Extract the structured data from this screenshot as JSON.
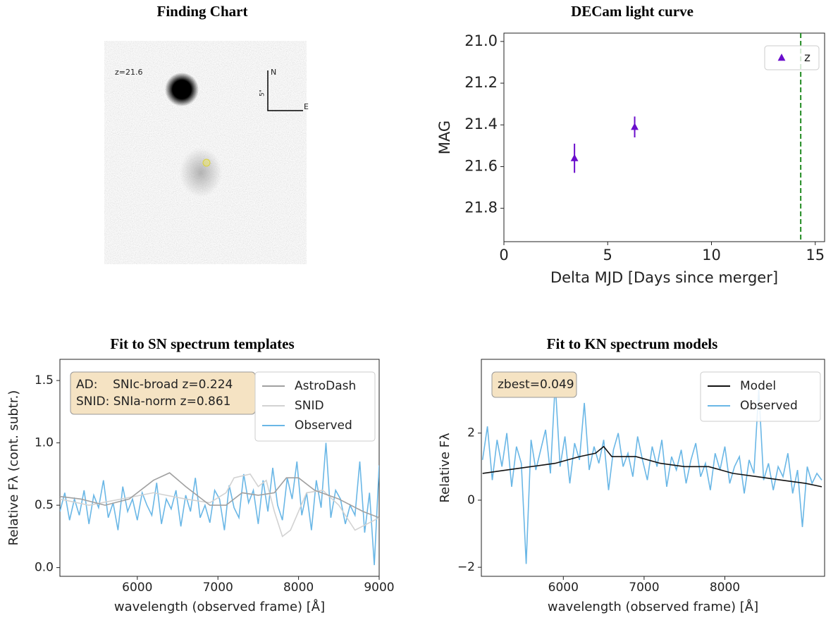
{
  "chart_data": [
    {
      "type": "image",
      "title": "Finding Chart",
      "annotations": [
        "z=21.6",
        "N",
        "E",
        "5\""
      ]
    },
    {
      "type": "scatter",
      "title": "DECam light curve",
      "xlabel": "Delta MJD [Days since merger]",
      "ylabel": "MAG",
      "xlim": [
        0,
        15.45
      ],
      "ylim": [
        20.96,
        21.96
      ],
      "y_inverted": true,
      "xticks": [
        0,
        5,
        10,
        15
      ],
      "yticks": [
        {
          "value": 21,
          "label": "21.0"
        },
        21.2,
        21.4,
        21.6,
        21.8
      ],
      "series": [
        {
          "name": "z",
          "color": "#6a0dcc",
          "x": [
            3.4,
            6.3
          ],
          "values": [
            21.56,
            21.41
          ],
          "errors": [
            0.07,
            0.05
          ]
        }
      ],
      "vlines": [
        14.3
      ],
      "vline_color": "#228b22",
      "legend": "upper right",
      "grid": false
    },
    {
      "type": "line",
      "title": "Fit to SN spectrum templates",
      "xlabel": "wavelength (observed frame) [Å]",
      "ylabel": "Relative Fλ (cont. subtr.)",
      "xlim": [
        5040,
        9000
      ],
      "ylim": [
        -0.07,
        1.67
      ],
      "xticks": [
        6000,
        7000,
        8000,
        9000
      ],
      "yticks": [
        {
          "value": 0,
          "label": "0.0"
        },
        0.5,
        {
          "value": 1,
          "label": "1.0"
        },
        1.5
      ],
      "annotation": [
        "AD:    SNIc-broad z=0.224",
        "SNID: SNIa-norm z=0.861"
      ],
      "legend": "upper right",
      "grid": false,
      "series": [
        {
          "name": "AstroDash",
          "color": "#a0a0a0",
          "x": [
            5040,
            5300,
            5600,
            5900,
            6200,
            6400,
            6600,
            6900,
            7100,
            7300,
            7500,
            7700,
            7850,
            8000,
            8200,
            8500,
            8800,
            9000
          ],
          "values": [
            0.57,
            0.55,
            0.5,
            0.55,
            0.7,
            0.76,
            0.65,
            0.5,
            0.5,
            0.6,
            0.58,
            0.6,
            0.72,
            0.72,
            0.62,
            0.55,
            0.45,
            0.4
          ]
        },
        {
          "name": "SNID",
          "color": "#d2d2d2",
          "x": [
            5040,
            5400,
            5800,
            6200,
            6600,
            6900,
            7100,
            7200,
            7400,
            7500,
            7600,
            7700,
            7800,
            7900,
            8100,
            8300,
            8500,
            8700,
            9000
          ],
          "values": [
            0.55,
            0.5,
            0.55,
            0.6,
            0.55,
            0.52,
            0.6,
            0.72,
            0.75,
            0.65,
            0.7,
            0.45,
            0.25,
            0.3,
            0.6,
            0.62,
            0.5,
            0.3,
            0.4
          ]
        },
        {
          "name": "Observed",
          "color": "#6ab7e6",
          "x": [
            5040,
            5100,
            5160,
            5220,
            5280,
            5340,
            5400,
            5460,
            5520,
            5580,
            5640,
            5700,
            5760,
            5820,
            5880,
            5940,
            6000,
            6060,
            6120,
            6180,
            6240,
            6300,
            6360,
            6420,
            6480,
            6540,
            6600,
            6660,
            6720,
            6780,
            6840,
            6900,
            6960,
            7020,
            7080,
            7140,
            7200,
            7260,
            7320,
            7380,
            7440,
            7500,
            7560,
            7620,
            7680,
            7740,
            7800,
            7860,
            7920,
            7980,
            8040,
            8100,
            8160,
            8220,
            8280,
            8340,
            8400,
            8460,
            8520,
            8580,
            8640,
            8700,
            8760,
            8820,
            8880,
            8940,
            9000
          ],
          "values": [
            0.45,
            0.6,
            0.38,
            0.55,
            0.42,
            0.62,
            0.35,
            0.58,
            0.48,
            0.7,
            0.4,
            0.52,
            0.3,
            0.65,
            0.45,
            0.55,
            0.38,
            0.6,
            0.5,
            0.42,
            0.68,
            0.35,
            0.55,
            0.47,
            0.62,
            0.33,
            0.58,
            0.45,
            0.72,
            0.4,
            0.5,
            0.36,
            0.62,
            0.55,
            0.3,
            0.66,
            0.48,
            0.4,
            0.75,
            0.52,
            0.62,
            0.35,
            0.7,
            0.45,
            0.8,
            0.5,
            0.38,
            0.72,
            0.55,
            0.85,
            0.42,
            0.6,
            0.3,
            0.7,
            0.48,
            1.0,
            0.4,
            0.62,
            0.55,
            0.35,
            0.5,
            0.42,
            0.85,
            0.28,
            0.6,
            0.02,
            0.82
          ]
        }
      ]
    },
    {
      "type": "line",
      "title": "Fit to KN spectrum models",
      "xlabel": "wavelength (observed frame) [Å]",
      "ylabel": "Relative Fλ",
      "xlim": [
        4985,
        9235
      ],
      "ylim": [
        -2.27,
        4.2
      ],
      "xticks": [
        6000,
        7000,
        8000
      ],
      "yticks": [
        {
          "value": -2,
          "label": "−2"
        },
        0,
        2
      ],
      "annotation": [
        "zbest=0.049"
      ],
      "legend": "upper right",
      "grid": false,
      "series": [
        {
          "name": "Model",
          "color": "#111111",
          "x": [
            5000,
            5300,
            5600,
            5900,
            6200,
            6400,
            6500,
            6600,
            6900,
            7200,
            7500,
            7800,
            8100,
            8400,
            8700,
            9000,
            9200
          ],
          "values": [
            0.8,
            0.9,
            1.0,
            1.1,
            1.3,
            1.4,
            1.6,
            1.3,
            1.3,
            1.1,
            1.0,
            1.0,
            0.8,
            0.7,
            0.6,
            0.5,
            0.4
          ]
        },
        {
          "name": "Observed",
          "color": "#6ab7e6",
          "x": [
            5000,
            5060,
            5120,
            5180,
            5240,
            5300,
            5360,
            5420,
            5480,
            5540,
            5600,
            5660,
            5720,
            5780,
            5840,
            5900,
            5960,
            6020,
            6080,
            6140,
            6200,
            6260,
            6320,
            6380,
            6440,
            6500,
            6560,
            6620,
            6680,
            6740,
            6800,
            6860,
            6920,
            6980,
            7040,
            7100,
            7160,
            7220,
            7280,
            7340,
            7400,
            7460,
            7520,
            7580,
            7640,
            7700,
            7760,
            7820,
            7880,
            7940,
            8000,
            8060,
            8120,
            8180,
            8240,
            8300,
            8360,
            8420,
            8480,
            8540,
            8600,
            8660,
            8720,
            8780,
            8840,
            8900,
            8960,
            9020,
            9080,
            9140,
            9200
          ],
          "values": [
            1.2,
            2.2,
            0.6,
            1.8,
            1.0,
            2.0,
            0.4,
            1.6,
            1.1,
            -1.9,
            1.8,
            0.9,
            1.5,
            2.1,
            0.8,
            3.5,
            1.0,
            1.9,
            0.5,
            1.7,
            1.2,
            2.9,
            0.9,
            1.6,
            1.1,
            1.8,
            0.3,
            1.5,
            2.0,
            1.0,
            1.4,
            0.7,
            1.9,
            1.2,
            0.6,
            1.6,
            1.0,
            1.8,
            0.4,
            1.3,
            0.9,
            1.5,
            0.5,
            1.2,
            1.7,
            0.7,
            1.1,
            0.3,
            1.4,
            0.9,
            1.6,
            0.5,
            1.0,
            1.3,
            0.2,
            1.2,
            0.8,
            3.3,
            0.6,
            1.1,
            0.3,
            1.0,
            0.7,
            1.4,
            0.2,
            0.9,
            -0.8,
            1.0,
            0.5,
            0.8,
            0.6
          ]
        }
      ]
    }
  ]
}
